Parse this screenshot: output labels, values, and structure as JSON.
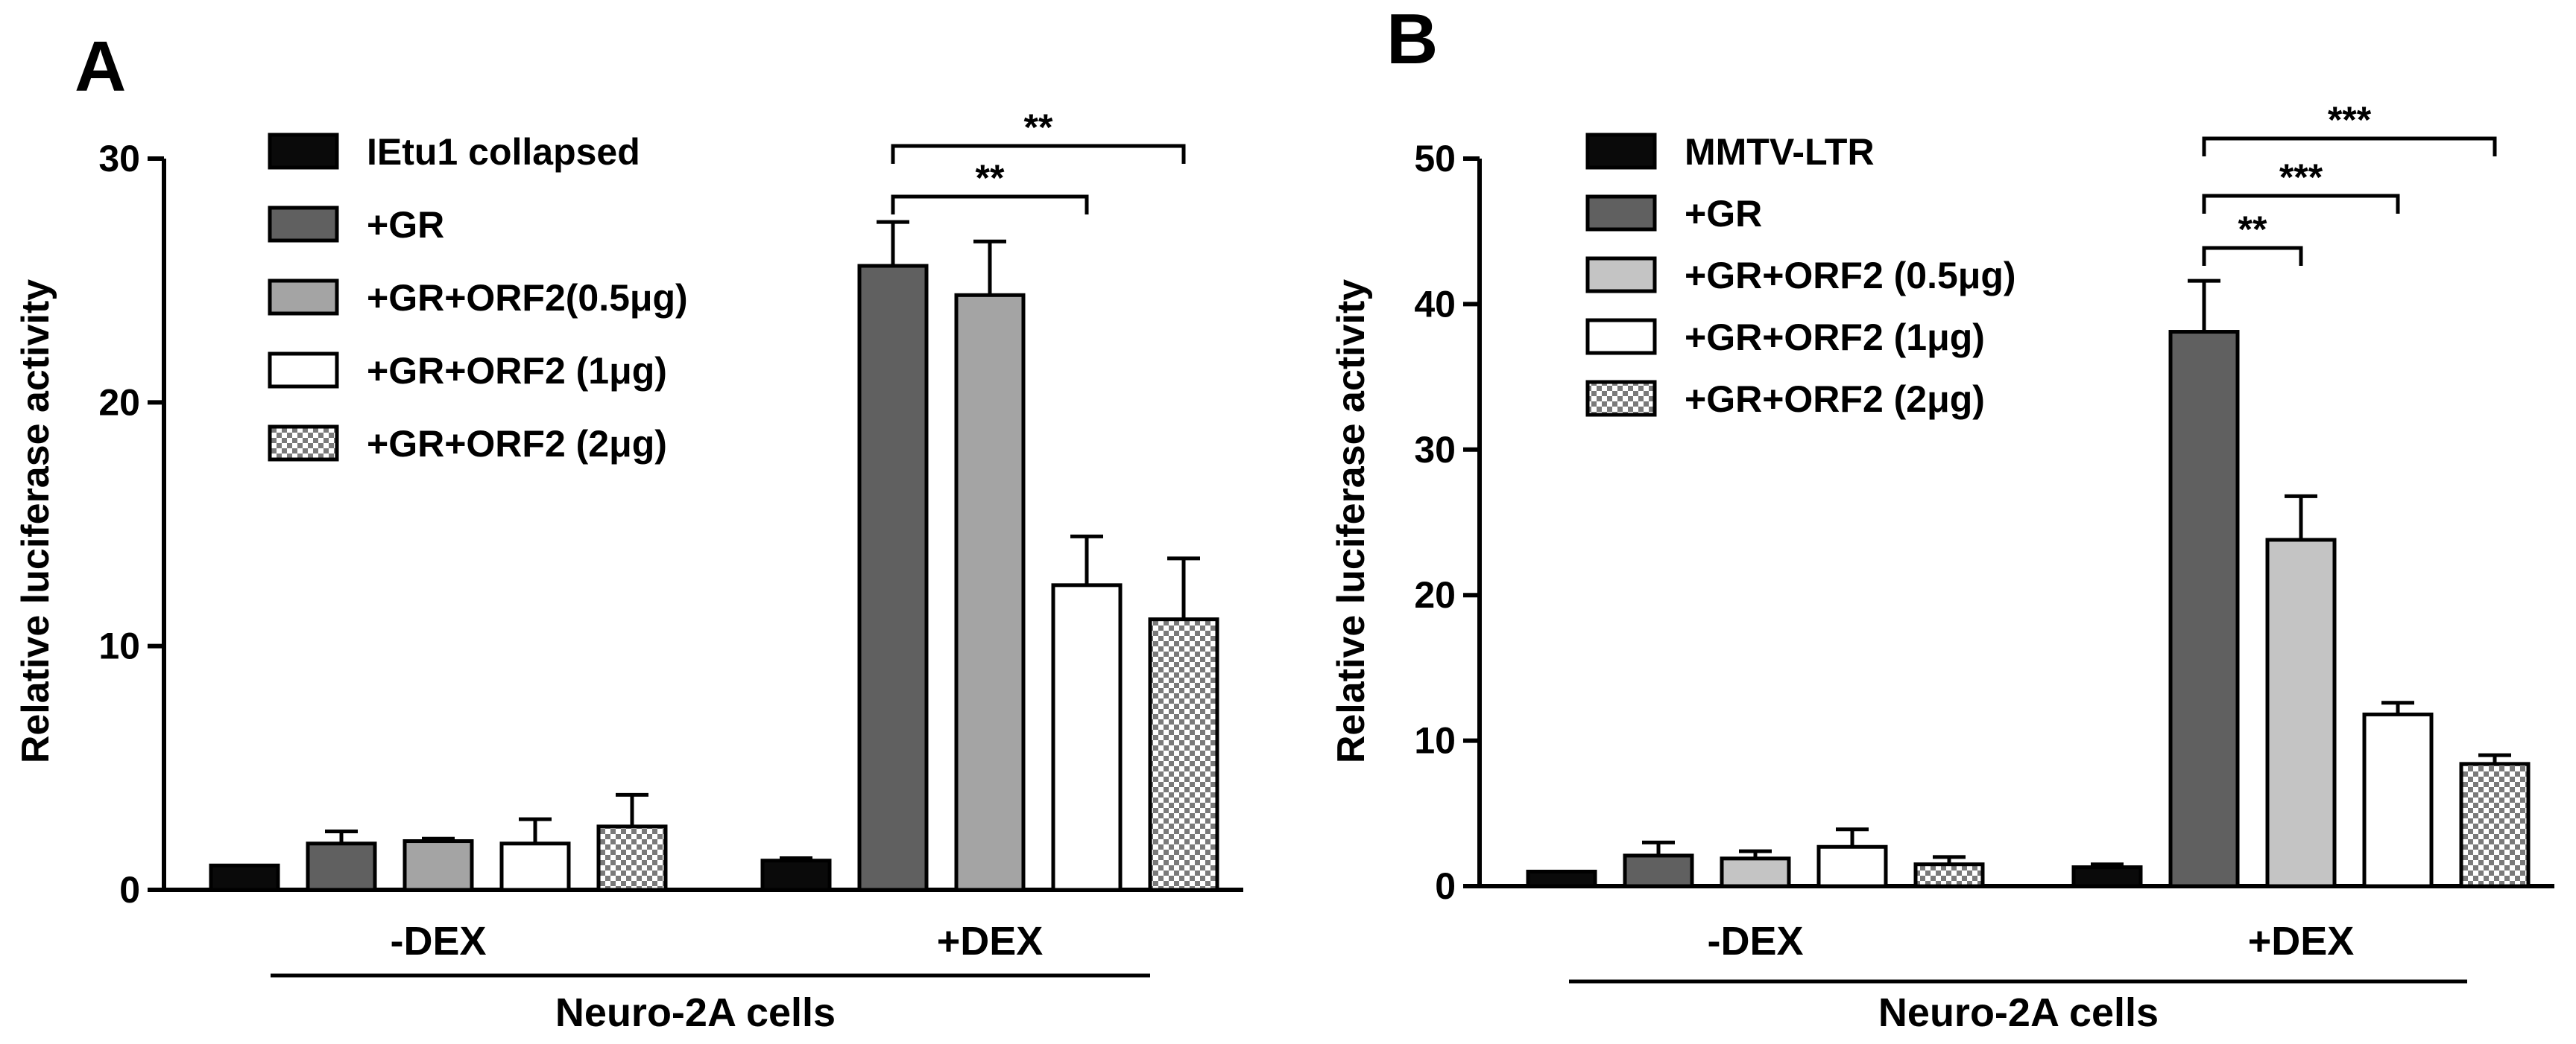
{
  "colors": {
    "black": "#0a0a0a",
    "dark_gray": "#606060",
    "mid_gray": "#a4a4a4",
    "light_gray": "#c4c4c4",
    "white": "#ffffff",
    "hatch": "checkered"
  },
  "chart_data": [
    {
      "type": "bar",
      "panel_label": "A",
      "ylabel": "Relative luciferase activity",
      "xlabel": "Neuro-2A cells",
      "ylim": [
        0,
        30
      ],
      "yticks": [
        "0",
        "10",
        "20",
        "30"
      ],
      "grid": false,
      "legend_position": "top-left",
      "categories": [
        "-DEX",
        "+DEX"
      ],
      "series": [
        {
          "name": "IEtu1 collapsed",
          "fill": "black",
          "values": [
            1.0,
            1.2
          ],
          "errors": [
            0.0,
            0.1
          ]
        },
        {
          "name": "+GR",
          "fill": "dark_gray",
          "values": [
            1.9,
            25.6
          ],
          "errors": [
            0.5,
            1.8
          ]
        },
        {
          "name": "+GR+ORF2(0.5μg)",
          "fill": "mid_gray",
          "values": [
            2.0,
            24.4
          ],
          "errors": [
            0.1,
            2.2
          ]
        },
        {
          "name": "+GR+ORF2 (1μg)",
          "fill": "white",
          "values": [
            1.9,
            12.5
          ],
          "errors": [
            1.0,
            2.0
          ]
        },
        {
          "name": "+GR+ORF2 (2μg)",
          "fill": "hatch",
          "values": [
            2.6,
            11.1
          ],
          "errors": [
            1.3,
            2.5
          ]
        }
      ],
      "significance": [
        {
          "label": "**",
          "from_series": 1,
          "to_series": 3,
          "category": 1
        },
        {
          "label": "**",
          "from_series": 1,
          "to_series": 4,
          "category": 1
        }
      ]
    },
    {
      "type": "bar",
      "panel_label": "B",
      "ylabel": "Relative luciferase activity",
      "xlabel": "Neuro-2A cells",
      "ylim": [
        0,
        50
      ],
      "yticks": [
        "0",
        "10",
        "20",
        "30",
        "40",
        "50"
      ],
      "grid": false,
      "legend_position": "top-left",
      "categories": [
        "-DEX",
        "+DEX"
      ],
      "series": [
        {
          "name": "MMTV-LTR",
          "fill": "black",
          "values": [
            1.0,
            1.3
          ],
          "errors": [
            0.0,
            0.2
          ]
        },
        {
          "name": "+GR",
          "fill": "dark_gray",
          "values": [
            2.1,
            38.1
          ],
          "errors": [
            0.9,
            3.5
          ]
        },
        {
          "name": "+GR+ORF2 (0.5μg)",
          "fill": "light_gray",
          "values": [
            1.9,
            23.8
          ],
          "errors": [
            0.5,
            3.0
          ]
        },
        {
          "name": "+GR+ORF2 (1μg)",
          "fill": "white",
          "values": [
            2.7,
            11.8
          ],
          "errors": [
            1.2,
            0.8
          ]
        },
        {
          "name": "+GR+ORF2 (2μg)",
          "fill": "hatch",
          "values": [
            1.5,
            8.4
          ],
          "errors": [
            0.5,
            0.6
          ]
        }
      ],
      "significance": [
        {
          "label": "**",
          "from_series": 1,
          "to_series": 2,
          "category": 1
        },
        {
          "label": "***",
          "from_series": 1,
          "to_series": 3,
          "category": 1
        },
        {
          "label": "***",
          "from_series": 1,
          "to_series": 4,
          "category": 1
        }
      ]
    }
  ]
}
